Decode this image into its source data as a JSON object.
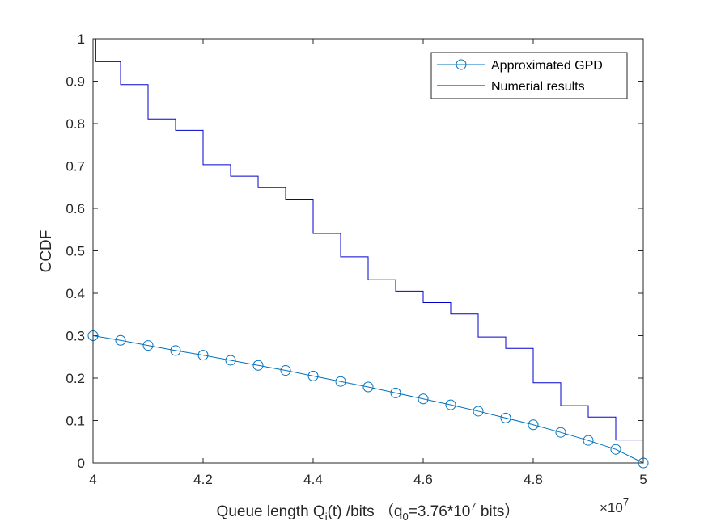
{
  "chart_data": {
    "type": "line",
    "title": "",
    "xlabel": {
      "main": "Queue length Q",
      "sub": "i",
      "rest": "(t)  /bits  （q",
      "sub2": "0",
      "mid": "=3.76*10",
      "sup": "7",
      "end": " bits）"
    },
    "ylabel": "CCDF",
    "x_exponent": {
      "base": "×10",
      "power": "7"
    },
    "xlim": [
      4.0,
      5.0
    ],
    "ylim": [
      0,
      1
    ],
    "xticks": [
      "4",
      "4.2",
      "4.4",
      "4.6",
      "4.8",
      "5"
    ],
    "yticks": [
      "0",
      "0.1",
      "0.2",
      "0.3",
      "0.4",
      "0.5",
      "0.6",
      "0.7",
      "0.8",
      "0.9",
      "1"
    ],
    "legend_position": "top-right",
    "series": [
      {
        "name": "Approximated GPD",
        "color": "#0072BD",
        "marker": "circle",
        "x": [
          4.0,
          4.05,
          4.1,
          4.15,
          4.2,
          4.25,
          4.3,
          4.35,
          4.4,
          4.45,
          4.5,
          4.55,
          4.6,
          4.65,
          4.7,
          4.75,
          4.8,
          4.85,
          4.9,
          4.95,
          5.0
        ],
        "y": [
          0.3,
          0.289,
          0.277,
          0.265,
          0.254,
          0.242,
          0.23,
          0.218,
          0.205,
          0.192,
          0.179,
          0.165,
          0.151,
          0.137,
          0.122,
          0.106,
          0.09,
          0.072,
          0.053,
          0.032,
          0.0
        ]
      },
      {
        "name": "Numerial results",
        "color": "#0000CD",
        "style": "stairs",
        "x": [
          4.0,
          4.005,
          4.05,
          4.1,
          4.15,
          4.2,
          4.25,
          4.3,
          4.35,
          4.4,
          4.45,
          4.5,
          4.55,
          4.6,
          4.65,
          4.7,
          4.75,
          4.8,
          4.85,
          4.9,
          4.95,
          5.0
        ],
        "y": [
          1.0,
          0.946,
          0.892,
          0.811,
          0.784,
          0.703,
          0.676,
          0.649,
          0.622,
          0.541,
          0.486,
          0.432,
          0.405,
          0.378,
          0.351,
          0.297,
          0.27,
          0.189,
          0.135,
          0.108,
          0.054,
          0.0
        ]
      }
    ]
  }
}
